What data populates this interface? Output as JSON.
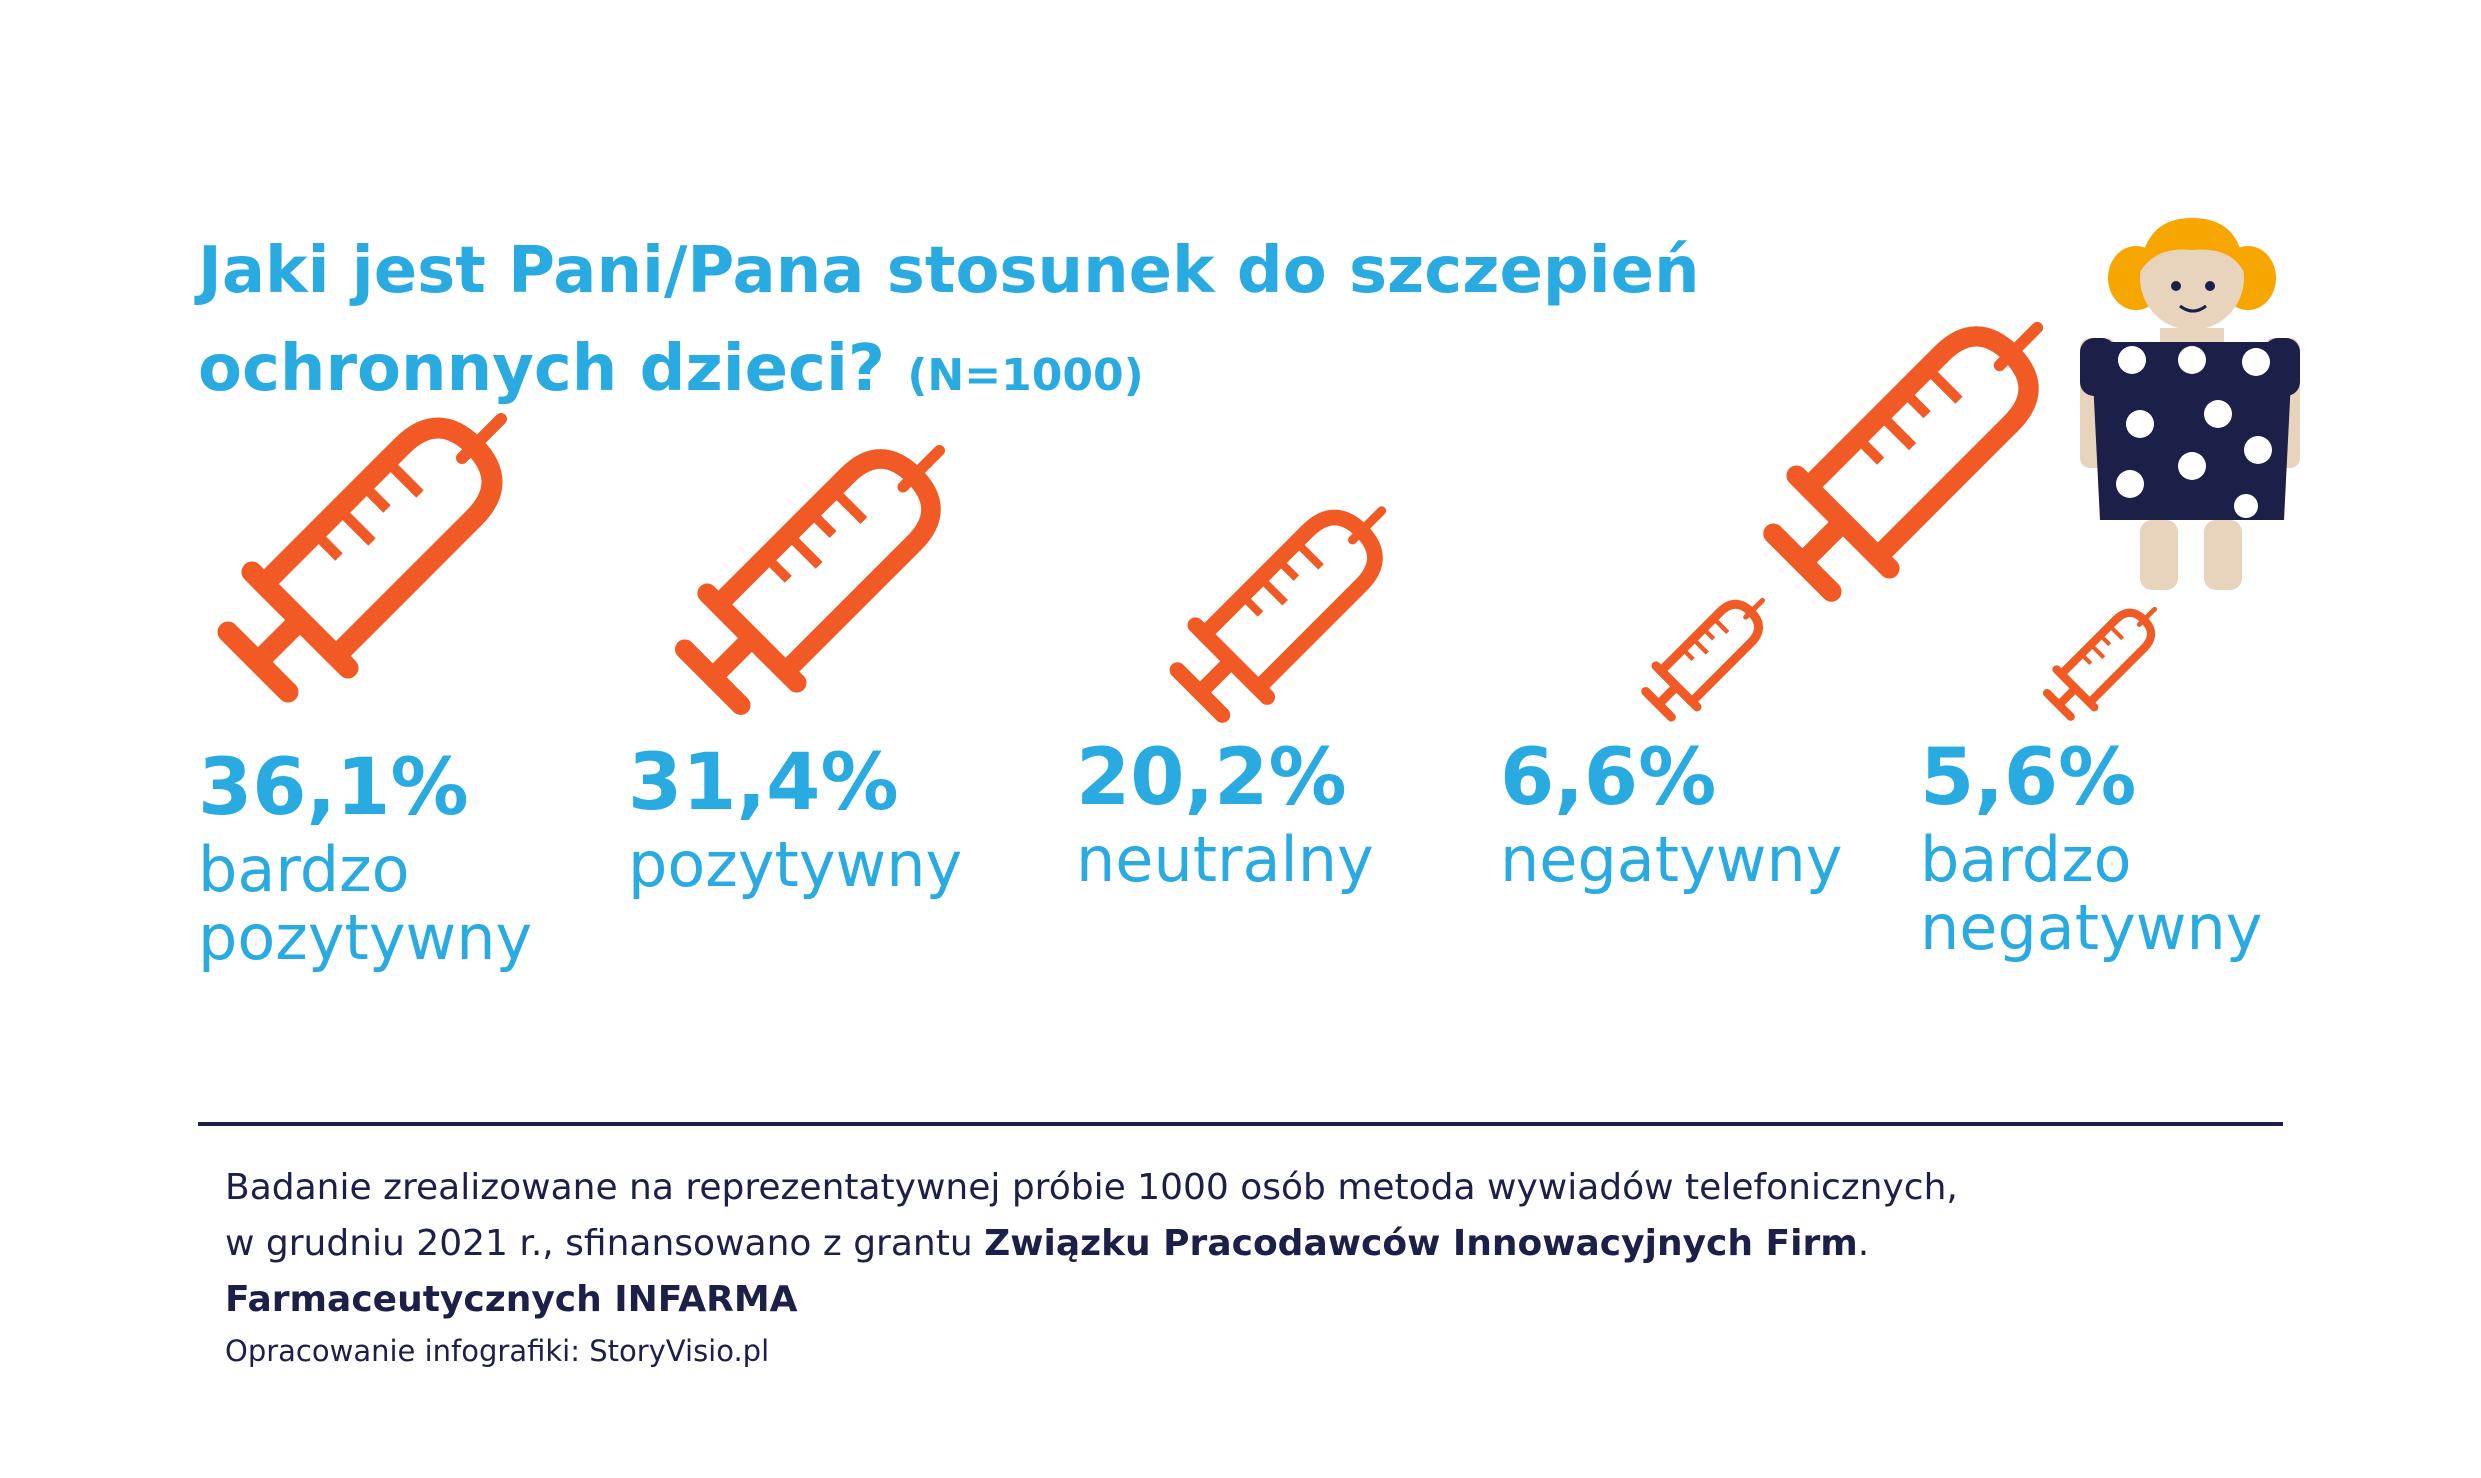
{
  "title": {
    "line1": "Jaki jest Pani/Pana stosunek do szczepień",
    "line2": "ochronnych dzieci?",
    "sample": "(N=1000)"
  },
  "chart_data": {
    "type": "pictogram",
    "unit": "%",
    "categories": [
      "bardzo pozytywny",
      "pozytywny",
      "neutralny",
      "negatywny",
      "bardzo negatywny"
    ],
    "values": [
      36.1,
      31.4,
      20.2,
      6.6,
      5.6
    ],
    "value_labels": [
      "36,1%",
      "31,4%",
      "20,2%",
      "6,6%",
      "5,6%"
    ],
    "label_lines": [
      [
        "bardzo",
        "pozytywny"
      ],
      [
        "pozytywny"
      ],
      [
        "neutralny"
      ],
      [
        "negatywny"
      ],
      [
        "bardzo",
        "negatywny"
      ]
    ],
    "colors": {
      "syringe": "#f15a24",
      "text": "#29abe2"
    }
  },
  "footer": {
    "line1": "Badanie zrealizowane na reprezentatywnej próbie 1000 osób metoda wywiadów telefonicznych,",
    "line2_plain": "w grudniu 2021 r., sfinansowano z grantu ",
    "line2_bold": "Związku Pracodawców Innowacyjnych Firm",
    "line2_end": ".",
    "line3_bold": "Farmaceutycznych INFARMA",
    "credit": "Opracowanie infografiki: StoryVisio.pl"
  },
  "icons": {
    "syringe": "syringe-icon",
    "decoration_syringe": "syringe-icon",
    "child": "girl-illustration"
  },
  "colors": {
    "accent": "#29abe2",
    "orange": "#f15a24",
    "navy": "#1c1f48"
  }
}
